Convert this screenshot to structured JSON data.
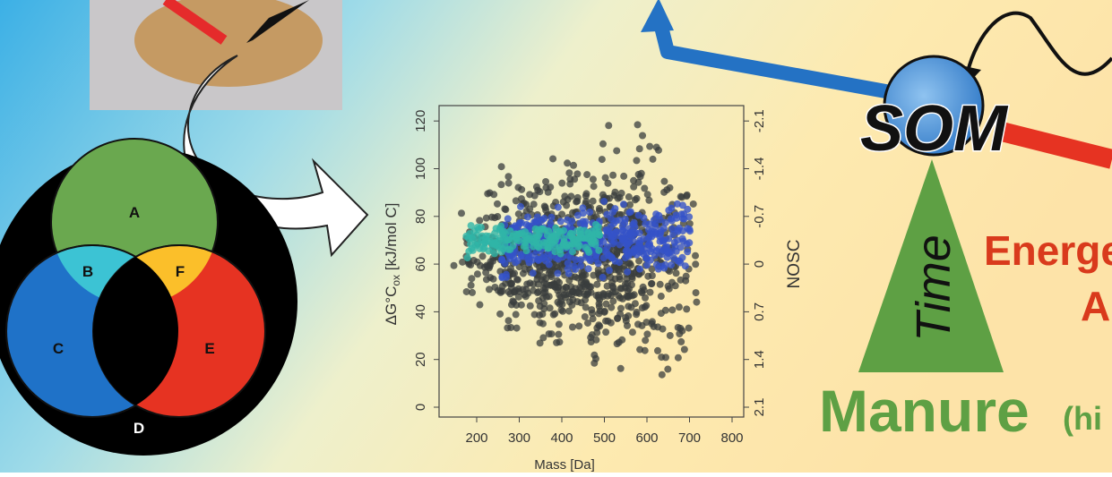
{
  "venn": {
    "a": "A",
    "b": "B",
    "f": "F",
    "c": "C",
    "e": "E",
    "d": "D"
  },
  "plot": {
    "y_ticks": [
      "0",
      "20",
      "40",
      "60",
      "80",
      "100",
      "120"
    ],
    "y2_ticks": [
      "2.1",
      "1.4",
      "0.7",
      "0",
      "-0.7",
      "-1.4",
      "-2.1"
    ],
    "x_ticks": [
      "200",
      "300",
      "400",
      "500",
      "600",
      "700",
      "800"
    ],
    "x_label": "Mass [Da]",
    "y_label": {
      "main": "ΔG°C",
      "sub": "ox",
      "unit": " [kJ/mol C]"
    },
    "y2_label": "NOSC"
  },
  "diagram": {
    "som": "SOM",
    "time": "Time",
    "energetic": "Energe",
    "energetic_2": "A",
    "manure": "Manure",
    "manure_note": "(hi"
  }
}
